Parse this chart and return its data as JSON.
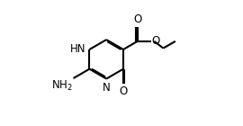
{
  "bg_color": "#ffffff",
  "line_color": "#000000",
  "line_width": 1.5,
  "font_size": 8.5,
  "figsize": [
    2.7,
    1.4
  ],
  "dpi": 100,
  "xlim": [
    0,
    10
  ],
  "ylim": [
    0,
    10
  ]
}
